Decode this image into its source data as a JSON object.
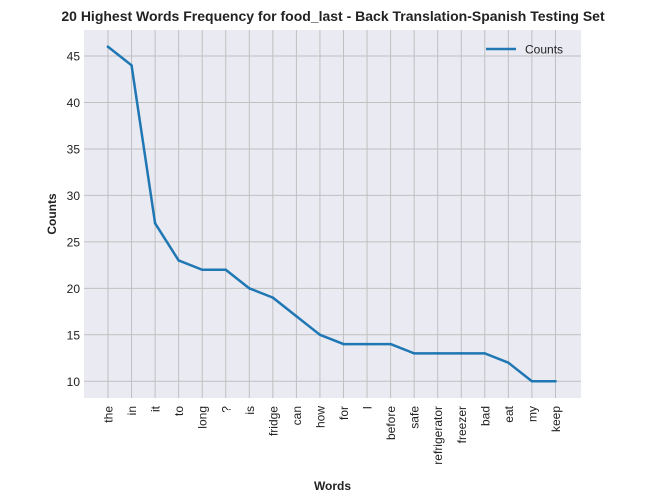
{
  "chart_data": {
    "type": "line",
    "title": "20 Highest Words Frequency for food_last - Back Translation-Spanish Testing Set",
    "xlabel": "Words",
    "ylabel": "Counts",
    "categories": [
      "the",
      "in",
      "it",
      "to",
      "long",
      "?",
      "is",
      "fridge",
      "can",
      "how",
      "for",
      "I",
      "before",
      "safe",
      "refrigerator",
      "freezer",
      "bad",
      "eat",
      "my",
      "keep"
    ],
    "series": [
      {
        "name": "Counts",
        "values": [
          46,
          44,
          27,
          23,
          22,
          22,
          20,
          19,
          17,
          15,
          14,
          14,
          14,
          13,
          13,
          13,
          13,
          12,
          10,
          10
        ]
      }
    ],
    "yticks": [
      10,
      15,
      20,
      25,
      30,
      35,
      40,
      45
    ],
    "ylim": [
      8.2,
      47.8
    ],
    "grid": true,
    "legend_position": "top-right",
    "line_color": "#1f77b4",
    "plot_background": "#eaeaf2",
    "grid_color": "#c0c0c0"
  }
}
